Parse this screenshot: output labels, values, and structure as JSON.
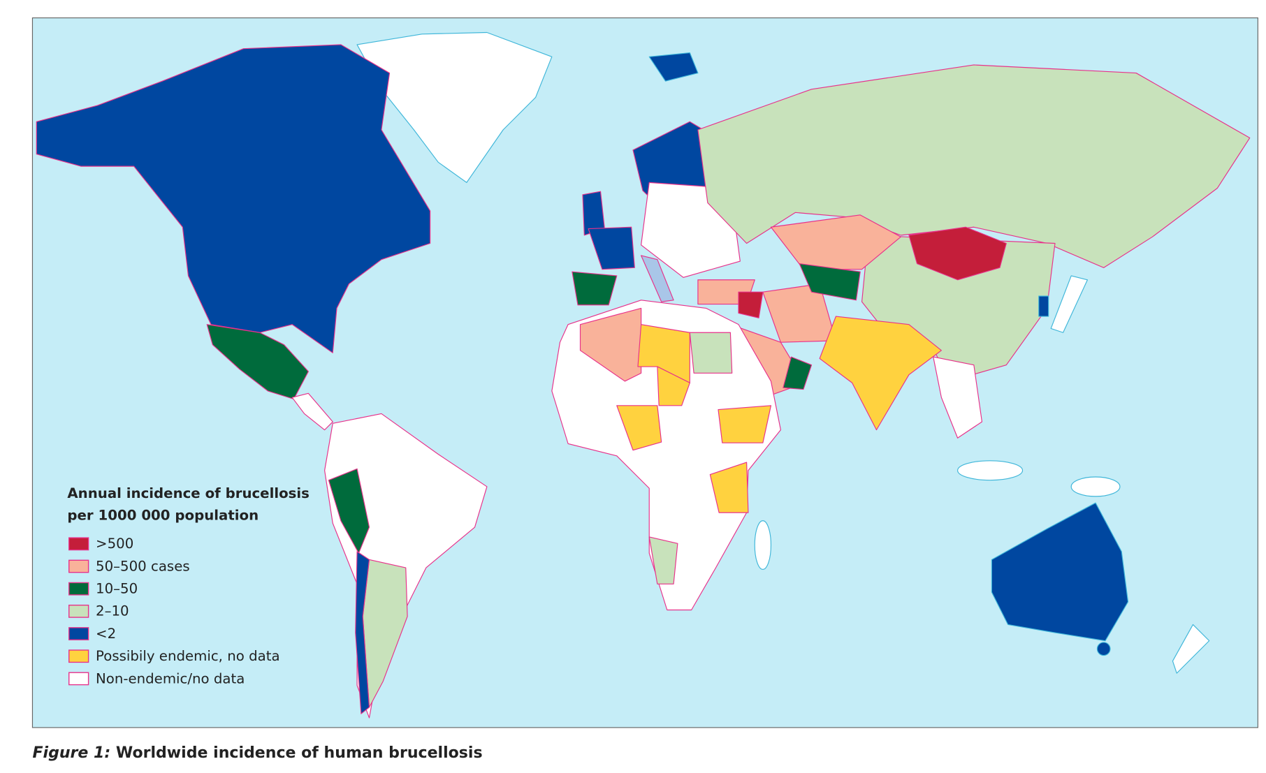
{
  "legend": {
    "title": [
      "Annual incidence of brucellosis",
      "per 1000 000 population"
    ],
    "items": [
      {
        "label": ">500",
        "color": "#c41e3a"
      },
      {
        "label": "50–500 cases",
        "color": "#f9b29a"
      },
      {
        "label": "10–50",
        "color": "#006b3c"
      },
      {
        "label": "2–10",
        "color": "#c8e2bb"
      },
      {
        "label": "<2",
        "color": "#0047a0"
      },
      {
        "label": "Possibily endemic, no data",
        "color": "#ffd23f"
      },
      {
        "label": "Non-endemic/no data",
        "color": "#ffffff"
      }
    ]
  },
  "caption": {
    "label": "Figure 1:",
    "text": "Worldwide incidence of human brucellosis"
  }
}
